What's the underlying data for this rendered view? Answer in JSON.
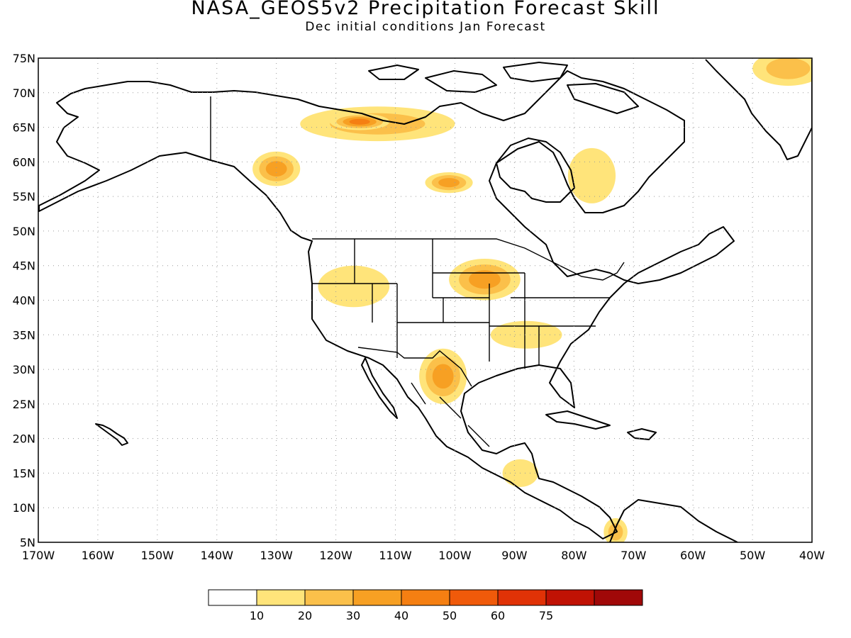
{
  "title": "NASA_GEOS5v2 Precipitation Forecast Skill",
  "subtitle": "Dec initial conditions  Jan Forecast",
  "map": {
    "lon_range": [
      -170,
      -40
    ],
    "lat_range": [
      5,
      75
    ],
    "lat_labels": [
      "75N",
      "70N",
      "65N",
      "60N",
      "55N",
      "50N",
      "45N",
      "40N",
      "35N",
      "30N",
      "25N",
      "20N",
      "15N",
      "10N",
      "5N"
    ],
    "lon_labels": [
      "170W",
      "160W",
      "150W",
      "140W",
      "130W",
      "120W",
      "110W",
      "100W",
      "90W",
      "80W",
      "70W",
      "60W",
      "50W",
      "40W"
    ],
    "grid": true
  },
  "colors": {
    "10": "#ffe47a",
    "20": "#fbc04a",
    "30": "#f7a023",
    "40": "#f57f12",
    "50": "#f05a0a",
    "60": "#e03206",
    "75": "#c01204",
    "max": "#a00808"
  },
  "colorbar": {
    "labels": [
      "10",
      "20",
      "30",
      "40",
      "50",
      "60",
      "75"
    ],
    "colors": [
      "#ffffff",
      "#ffe47a",
      "#fbc04a",
      "#f7a023",
      "#f57f12",
      "#f05a0a",
      "#e03206",
      "#c01204",
      "#a00808"
    ]
  },
  "skill_regions": [
    {
      "name": "greenland-ne",
      "lon": -44,
      "lat": 73.5,
      "rx": 6,
      "ry": 2.5,
      "level": 2
    },
    {
      "name": "northern-canada-arctic",
      "lon": -113,
      "lat": 65.5,
      "rx": 13,
      "ry": 2.5,
      "level": 2
    },
    {
      "name": "northern-canada-core",
      "lon": -116,
      "lat": 65.8,
      "rx": 5,
      "ry": 1.2,
      "level": 4
    },
    {
      "name": "british-columbia",
      "lon": -130,
      "lat": 59,
      "rx": 4,
      "ry": 2.5,
      "level": 3
    },
    {
      "name": "hudson-west",
      "lon": -101,
      "lat": 57,
      "rx": 4,
      "ry": 1.5,
      "level": 3
    },
    {
      "name": "labrador",
      "lon": -77,
      "lat": 58,
      "rx": 4,
      "ry": 4,
      "level": 1
    },
    {
      "name": "great-plains",
      "lon": -95,
      "lat": 43,
      "rx": 6,
      "ry": 3,
      "level": 3
    },
    {
      "name": "great-basin",
      "lon": -117,
      "lat": 42,
      "rx": 6,
      "ry": 3,
      "level": 1
    },
    {
      "name": "mexico-north",
      "lon": -102,
      "lat": 29,
      "rx": 4,
      "ry": 4,
      "level": 3
    },
    {
      "name": "southeast-us",
      "lon": -88,
      "lat": 35,
      "rx": 6,
      "ry": 2,
      "level": 1
    },
    {
      "name": "central-america",
      "lon": -89,
      "lat": 15,
      "rx": 3,
      "ry": 2,
      "level": 1
    },
    {
      "name": "south-america-nw",
      "lon": -73,
      "lat": 6.5,
      "rx": 2,
      "ry": 2,
      "level": 2
    }
  ]
}
